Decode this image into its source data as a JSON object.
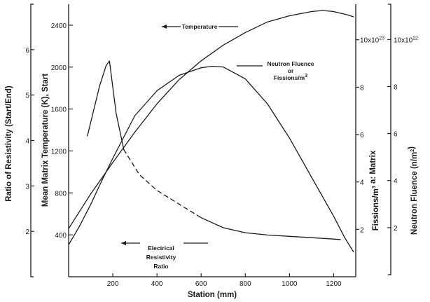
{
  "chart_data": {
    "type": "line",
    "x_axis": {
      "label": "Station (mm)",
      "range": [
        0,
        1300
      ],
      "ticks": [
        200,
        400,
        600,
        800,
        1000,
        1200
      ]
    },
    "axes": {
      "resistivity": {
        "label": "Ratio of Resistivity (Start/End)",
        "range": [
          1,
          7
        ],
        "ticks": [
          {
            "v": 2,
            "t": "2"
          },
          {
            "v": 3,
            "t": "3"
          },
          {
            "v": 4,
            "t": "4"
          },
          {
            "v": 5,
            "t": "5"
          },
          {
            "v": 6,
            "t": "6"
          }
        ]
      },
      "temperature": {
        "label": "Mean Matrix Temperature (K), Start",
        "range": [
          0,
          2600
        ],
        "ticks": [
          {
            "v": 400,
            "t": "400"
          },
          {
            "v": 800,
            "t": "800"
          },
          {
            "v": 1200,
            "t": "1200"
          },
          {
            "v": 1600,
            "t": "1600"
          },
          {
            "v": 2000,
            "t": "2000"
          },
          {
            "v": 2400,
            "t": "2400"
          }
        ]
      },
      "fissions": {
        "label": "Fissions/m",
        "label_sup": "3",
        "label_tail": " a: Matrix",
        "range": [
          0,
          11.5
        ],
        "ticks": [
          {
            "v": 2,
            "t": "2"
          },
          {
            "v": 4,
            "t": "4"
          },
          {
            "v": 6,
            "t": "6"
          },
          {
            "v": 8,
            "t": "8"
          },
          {
            "v": 10,
            "t": "10x10",
            "sup": "23"
          }
        ]
      },
      "fluence": {
        "label": "Neutron Fluence  (n/m",
        "label_sup": "2",
        "label_tail": ")",
        "range": [
          0,
          11.5
        ],
        "ticks": [
          {
            "v": 2,
            "t": "2"
          },
          {
            "v": 4,
            "t": "4"
          },
          {
            "v": 6,
            "t": "6"
          },
          {
            "v": 8,
            "t": "8"
          },
          {
            "v": 10,
            "t": "10x10",
            "sup": "22"
          }
        ]
      }
    },
    "series": [
      {
        "annotation": "Temperature",
        "axis": "temperature",
        "points": [
          [
            0,
            460
          ],
          [
            100,
            790
          ],
          [
            200,
            1090
          ],
          [
            300,
            1380
          ],
          [
            400,
            1650
          ],
          [
            500,
            1880
          ],
          [
            600,
            2060
          ],
          [
            700,
            2210
          ],
          [
            800,
            2330
          ],
          [
            900,
            2430
          ],
          [
            1000,
            2490
          ],
          [
            1100,
            2530
          ],
          [
            1150,
            2540
          ],
          [
            1200,
            2530
          ],
          [
            1260,
            2500
          ],
          [
            1290,
            2480
          ]
        ]
      },
      {
        "annotation": [
          "Neutron Fluence",
          "or",
          "Fissions/m"
        ],
        "annotation_sup": "3",
        "axis": "fissions",
        "points": [
          [
            0,
            1.35
          ],
          [
            50,
            2.15
          ],
          [
            100,
            3.05
          ],
          [
            150,
            4.05
          ],
          [
            200,
            5.0
          ],
          [
            300,
            6.8
          ],
          [
            400,
            7.85
          ],
          [
            500,
            8.5
          ],
          [
            600,
            8.82
          ],
          [
            650,
            8.88
          ],
          [
            700,
            8.85
          ],
          [
            800,
            8.35
          ],
          [
            900,
            7.3
          ],
          [
            1000,
            5.85
          ],
          [
            1100,
            4.2
          ],
          [
            1200,
            2.55
          ],
          [
            1250,
            1.65
          ],
          [
            1290,
            1.05
          ]
        ]
      },
      {
        "annotation": [
          "Electrical",
          "Resistivity",
          "Ratio"
        ],
        "axis": "resistivity",
        "segments": [
          {
            "style": "solid",
            "points": [
              [
                85,
                4.1
              ],
              [
                110,
                4.6
              ],
              [
                140,
                5.2
              ],
              [
                170,
                5.65
              ],
              [
                185,
                5.75
              ],
              [
                215,
                4.6
              ],
              [
                250,
                3.8
              ]
            ]
          },
          {
            "style": "dashed",
            "points": [
              [
                250,
                3.8
              ],
              [
                320,
                3.25
              ],
              [
                400,
                2.9
              ],
              [
                500,
                2.6
              ],
              [
                600,
                2.3
              ]
            ]
          },
          {
            "style": "solid",
            "points": [
              [
                600,
                2.3
              ],
              [
                700,
                2.08
              ],
              [
                800,
                1.97
              ],
              [
                900,
                1.92
              ],
              [
                1000,
                1.89
              ],
              [
                1100,
                1.86
              ],
              [
                1200,
                1.83
              ],
              [
                1230,
                1.82
              ]
            ]
          }
        ]
      }
    ]
  }
}
